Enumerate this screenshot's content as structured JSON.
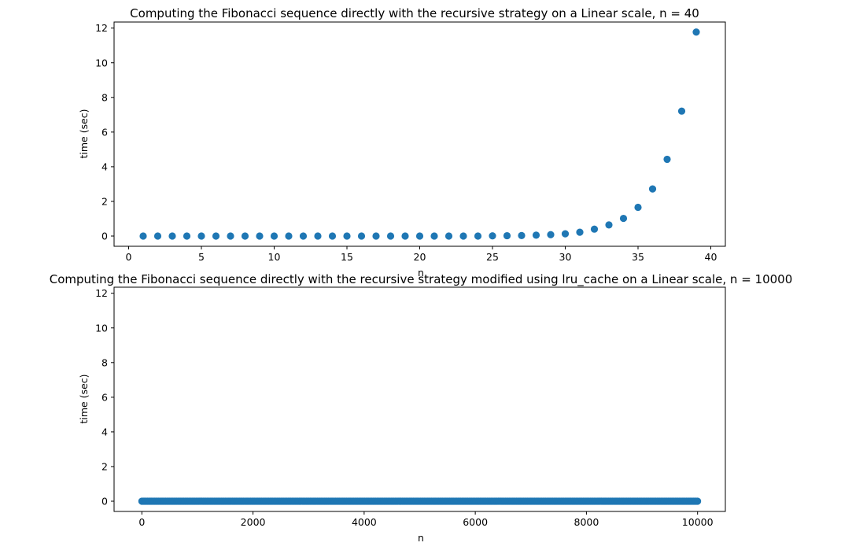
{
  "chart_data": [
    {
      "type": "scatter",
      "title": "Computing the Fibonacci sequence directly with the recursive strategy on a Linear scale, n = 40",
      "xlabel": "n",
      "ylabel": "time (sec)",
      "xlim": [
        -1,
        41
      ],
      "ylim": [
        -0.59,
        12.35
      ],
      "xticks": [
        0,
        5,
        10,
        15,
        20,
        25,
        30,
        35,
        40
      ],
      "yticks": [
        0,
        2,
        4,
        6,
        8,
        10,
        12
      ],
      "color": "#1f77b4",
      "x": [
        1,
        2,
        3,
        4,
        5,
        6,
        7,
        8,
        9,
        10,
        11,
        12,
        13,
        14,
        15,
        16,
        17,
        18,
        19,
        20,
        21,
        22,
        23,
        24,
        25,
        26,
        27,
        28,
        29,
        30,
        31,
        32,
        33,
        34,
        35,
        36,
        37,
        38,
        39
      ],
      "y": [
        0,
        0,
        0,
        0,
        0,
        0,
        0,
        0,
        0,
        0,
        0,
        0,
        0,
        0,
        0,
        0,
        0,
        0,
        0,
        0,
        0,
        0,
        0,
        0,
        0.01,
        0.02,
        0.03,
        0.05,
        0.08,
        0.13,
        0.22,
        0.4,
        0.64,
        1.02,
        1.66,
        2.72,
        4.43,
        7.21,
        11.77
      ]
    },
    {
      "type": "scatter",
      "title": "Computing the Fibonacci sequence directly with the recursive strategy modified using lru_cache on a Linear scale, n = 10000",
      "xlabel": "n",
      "ylabel": "time (sec)",
      "xlim": [
        -500,
        10500
      ],
      "ylim": [
        -0.59,
        12.35
      ],
      "xticks": [
        0,
        2000,
        4000,
        6000,
        8000,
        10000
      ],
      "yticks": [
        0,
        2,
        4,
        6,
        8,
        10,
        12
      ],
      "color": "#1f77b4",
      "x_range": [
        1,
        9999
      ],
      "y_constant": 0
    }
  ]
}
